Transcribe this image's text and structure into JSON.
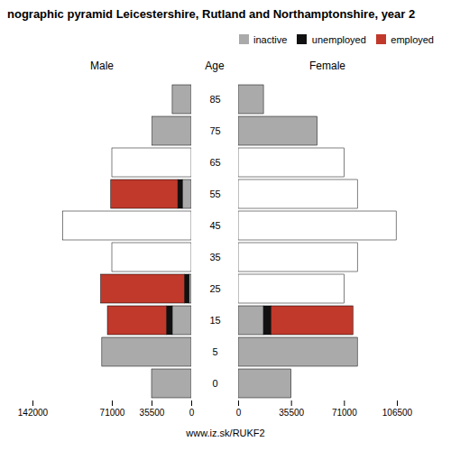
{
  "chart_data": {
    "type": "bar",
    "title": "nographic pyramid Leicestershire, Rutland and Northamptonshire, year 2",
    "orientation": "horizontal",
    "stacked": true,
    "grid": false,
    "tick_labels": "x",
    "legend": "upper right",
    "ylabel": "Age",
    "caption": "www.iz.sk/RUKF2",
    "categories": [
      "85",
      "75",
      "65",
      "55",
      "45",
      "35",
      "25",
      "15",
      "5",
      "0"
    ],
    "panels": [
      {
        "title": "Male",
        "xlim": [
          142000,
          0
        ],
        "xticks": [
          142000,
          71000,
          35500,
          0
        ],
        "series": [
          {
            "color": "#ffffff",
            "values": [
              0,
              0,
              71000,
              0,
              115000,
              71000,
              0,
              0,
              0,
              0
            ]
          },
          {
            "name": "inactive",
            "color": "#aaaaaa",
            "values": [
              17000,
              35000,
              0,
              8000,
              0,
              0,
              2000,
              17000,
              80000,
              35500
            ]
          },
          {
            "name": "unemployed",
            "color": "#111111",
            "values": [
              0,
              0,
              0,
              4000,
              0,
              0,
              4000,
              5000,
              0,
              0
            ]
          },
          {
            "name": "employed",
            "color": "#c0392b",
            "values": [
              0,
              0,
              0,
              60000,
              0,
              0,
              75000,
              53000,
              0,
              0
            ]
          }
        ]
      },
      {
        "title": "Female",
        "xlim": [
          0,
          106500
        ],
        "xticks": [
          0,
          35500,
          71000,
          106500
        ],
        "series": [
          {
            "color": "#ffffff",
            "values": [
              0,
              0,
              71000,
              80000,
              106000,
              80000,
              71000,
              0,
              0,
              0
            ]
          },
          {
            "name": "inactive",
            "color": "#aaaaaa",
            "values": [
              17000,
              53000,
              0,
              0,
              0,
              0,
              0,
              17000,
              80000,
              35500
            ]
          },
          {
            "name": "unemployed",
            "color": "#111111",
            "values": [
              0,
              0,
              0,
              0,
              0,
              0,
              0,
              5000,
              0,
              0
            ]
          },
          {
            "name": "employed",
            "color": "#c0392b",
            "values": [
              0,
              0,
              0,
              0,
              0,
              0,
              0,
              55000,
              0,
              0
            ]
          }
        ]
      }
    ]
  }
}
